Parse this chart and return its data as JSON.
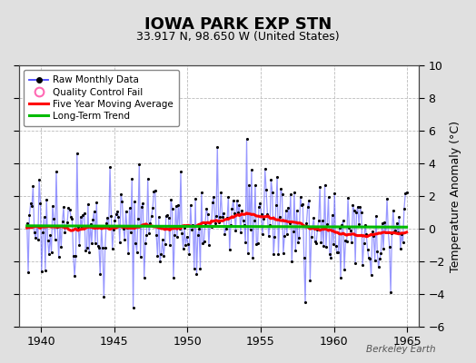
{
  "title": "IOWA PARK EXP STN",
  "subtitle": "33.917 N, 98.650 W (United States)",
  "ylabel": "Temperature Anomaly (°C)",
  "watermark": "Berkeley Earth",
  "xlim": [
    1938.5,
    1965.8
  ],
  "ylim": [
    -6,
    10
  ],
  "yticks": [
    -6,
    -4,
    -2,
    0,
    2,
    4,
    6,
    8,
    10
  ],
  "xticks": [
    1940,
    1945,
    1950,
    1955,
    1960,
    1965
  ],
  "raw_color": "#4444ff",
  "raw_alpha": 0.55,
  "dot_color": "#000000",
  "ma_color": "#ff0000",
  "trend_color": "#00bb00",
  "background_color": "#e0e0e0",
  "plot_bg_color": "#ffffff",
  "grid_color": "#bbbbbb",
  "seed": 17,
  "n_months": 312,
  "start_year": 1939.0417
}
